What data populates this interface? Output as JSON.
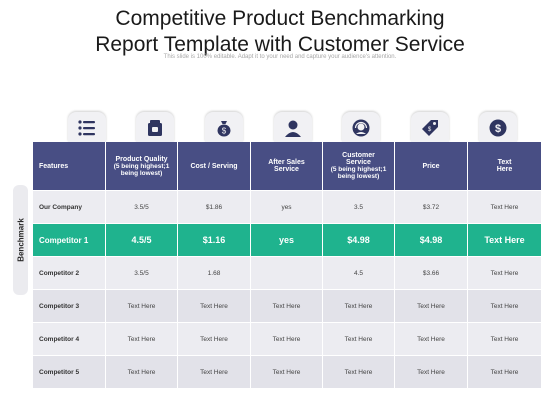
{
  "title_lines": [
    "Competitive Product Benchmarking",
    "Report Template with Customer Service"
  ],
  "subtitle": "This slide is 100% editable. Adapt it to your need and capture your audience's attention.",
  "side_label": "Benchmark",
  "icons": [
    "checklist-icon",
    "box-icon",
    "money-bag-icon",
    "user-icon",
    "headset-icon",
    "price-tag-icon",
    "dollar-coin-icon"
  ],
  "colors": {
    "header": "#484e84",
    "highlight": "#1fb38e",
    "row": "#ececf1",
    "row_alt": "#e2e2e9"
  },
  "header": {
    "features": "Features",
    "quality": "Product Quality",
    "quality_sub": "(5 being highest;1 being lowest)",
    "cost": "Cost / Serving",
    "after_sales_1": "After Sales",
    "after_sales_2": "Service",
    "cs_1": "Customer",
    "cs_2": "Service",
    "cs_sub": "(5 being highest;1 being lowest)",
    "price": "Price",
    "text_1": "Text",
    "text_2": "Here"
  },
  "rows": [
    {
      "name": "Our Company",
      "cells": [
        "3.5/5",
        "$1.86",
        "yes",
        "3.5",
        "$3.72",
        "Text Here"
      ]
    },
    {
      "name": "Competitor 1",
      "cells": [
        "4.5/5",
        "$1.16",
        "yes",
        "$4.98",
        "$4.98",
        "Text Here"
      ]
    },
    {
      "name": "Competitor 2",
      "cells": [
        "3.5/5",
        "1.68",
        "",
        "4.5",
        "$3.66",
        "Text Here"
      ]
    },
    {
      "name": "Competitor 3",
      "cells": [
        "Text Here",
        "Text Here",
        "Text Here",
        "Text Here",
        "Text Here",
        "Text Here"
      ]
    },
    {
      "name": "Competitor 4",
      "cells": [
        "Text Here",
        "Text Here",
        "Text Here",
        "Text Here",
        "Text Here",
        "Text Here"
      ]
    },
    {
      "name": "Competitor 5",
      "cells": [
        "Text Here",
        "Text Here",
        "Text Here",
        "Text Here",
        "Text Here",
        "Text Here"
      ]
    }
  ]
}
